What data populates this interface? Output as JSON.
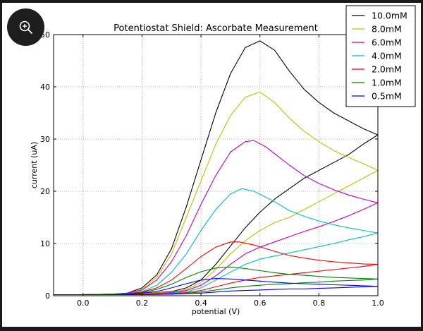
{
  "zoom_button": {
    "icon": "zoom-in-icon"
  },
  "chart_data": {
    "type": "line",
    "title": "Potentiostat Shield: Ascorbate Measurement",
    "xlabel": "potential (V)",
    "ylabel": "current (uA)",
    "xlim": [
      -0.1,
      1.0
    ],
    "ylim": [
      0,
      50
    ],
    "xticks": [
      0.0,
      0.2,
      0.4,
      0.6,
      0.8,
      1.0
    ],
    "xtick_labels": [
      "0.0",
      "0.2",
      "0.4",
      "0.6",
      "0.8",
      "1.0"
    ],
    "yticks": [
      0,
      10,
      20,
      30,
      40,
      50
    ],
    "ytick_labels": [
      "0",
      "10",
      "20",
      "30",
      "40",
      "50"
    ],
    "grid": true,
    "legend_position": "top-right",
    "series": [
      {
        "name": "10.0mM",
        "color": "#000000",
        "forward": [
          [
            -0.1,
            0.2
          ],
          [
            0.0,
            0.2
          ],
          [
            0.1,
            0.3
          ],
          [
            0.15,
            0.5
          ],
          [
            0.2,
            1.5
          ],
          [
            0.25,
            4
          ],
          [
            0.3,
            9
          ],
          [
            0.35,
            17
          ],
          [
            0.4,
            26
          ],
          [
            0.45,
            35
          ],
          [
            0.5,
            42.5
          ],
          [
            0.55,
            47.5
          ],
          [
            0.6,
            48.8
          ],
          [
            0.65,
            47
          ],
          [
            0.7,
            43
          ],
          [
            0.75,
            39.5
          ],
          [
            0.8,
            37
          ],
          [
            0.85,
            35
          ],
          [
            0.9,
            33.5
          ],
          [
            0.95,
            32
          ],
          [
            1.0,
            30.8
          ]
        ],
        "reverse": [
          [
            1.0,
            30.8
          ],
          [
            0.95,
            29
          ],
          [
            0.9,
            27
          ],
          [
            0.85,
            25.5
          ],
          [
            0.8,
            24
          ],
          [
            0.75,
            22.5
          ],
          [
            0.7,
            20.5
          ],
          [
            0.65,
            18.5
          ],
          [
            0.6,
            16
          ],
          [
            0.55,
            13
          ],
          [
            0.5,
            9.5
          ],
          [
            0.45,
            6
          ],
          [
            0.4,
            3
          ],
          [
            0.35,
            1.5
          ],
          [
            0.3,
            0.8
          ],
          [
            0.2,
            0.4
          ],
          [
            0.1,
            0.2
          ],
          [
            -0.1,
            0.2
          ]
        ]
      },
      {
        "name": "8.0mM",
        "color": "#bfbf00",
        "forward": [
          [
            -0.1,
            0.2
          ],
          [
            0.0,
            0.2
          ],
          [
            0.1,
            0.3
          ],
          [
            0.15,
            0.5
          ],
          [
            0.2,
            1.2
          ],
          [
            0.25,
            3.5
          ],
          [
            0.3,
            8
          ],
          [
            0.35,
            15
          ],
          [
            0.4,
            22
          ],
          [
            0.45,
            29
          ],
          [
            0.5,
            34.5
          ],
          [
            0.55,
            38
          ],
          [
            0.6,
            39
          ],
          [
            0.65,
            37
          ],
          [
            0.7,
            34
          ],
          [
            0.75,
            31.5
          ],
          [
            0.8,
            29.5
          ],
          [
            0.85,
            27.8
          ],
          [
            0.9,
            26.5
          ],
          [
            0.95,
            25.3
          ],
          [
            1.0,
            24
          ]
        ],
        "reverse": [
          [
            1.0,
            24
          ],
          [
            0.95,
            22.5
          ],
          [
            0.9,
            21
          ],
          [
            0.85,
            19.5
          ],
          [
            0.8,
            18
          ],
          [
            0.75,
            16.5
          ],
          [
            0.7,
            15
          ],
          [
            0.65,
            14
          ],
          [
            0.6,
            12.5
          ],
          [
            0.55,
            10.5
          ],
          [
            0.5,
            8
          ],
          [
            0.45,
            5
          ],
          [
            0.4,
            2.5
          ],
          [
            0.35,
            1.2
          ],
          [
            0.3,
            0.7
          ],
          [
            0.2,
            0.4
          ],
          [
            0.1,
            0.2
          ],
          [
            -0.1,
            0.2
          ]
        ]
      },
      {
        "name": "6.0mM",
        "color": "#bf00bf",
        "forward": [
          [
            -0.1,
            0.2
          ],
          [
            0.0,
            0.2
          ],
          [
            0.1,
            0.3
          ],
          [
            0.15,
            0.5
          ],
          [
            0.2,
            1.1
          ],
          [
            0.25,
            3
          ],
          [
            0.3,
            6.5
          ],
          [
            0.35,
            11.5
          ],
          [
            0.4,
            17.5
          ],
          [
            0.45,
            23
          ],
          [
            0.5,
            27.5
          ],
          [
            0.55,
            29.5
          ],
          [
            0.58,
            29.7
          ],
          [
            0.62,
            28.5
          ],
          [
            0.7,
            25
          ],
          [
            0.75,
            23
          ],
          [
            0.8,
            21.5
          ],
          [
            0.85,
            20.3
          ],
          [
            0.9,
            19.3
          ],
          [
            0.95,
            18.5
          ],
          [
            1.0,
            17.8
          ]
        ],
        "reverse": [
          [
            1.0,
            17.8
          ],
          [
            0.95,
            16.5
          ],
          [
            0.9,
            15.3
          ],
          [
            0.85,
            14.2
          ],
          [
            0.8,
            13.2
          ],
          [
            0.75,
            12.3
          ],
          [
            0.7,
            11.3
          ],
          [
            0.65,
            10.3
          ],
          [
            0.6,
            9.3
          ],
          [
            0.55,
            8
          ],
          [
            0.5,
            6
          ],
          [
            0.45,
            3.8
          ],
          [
            0.4,
            2
          ],
          [
            0.35,
            1
          ],
          [
            0.3,
            0.6
          ],
          [
            0.2,
            0.3
          ],
          [
            0.1,
            0.2
          ],
          [
            -0.1,
            0.2
          ]
        ]
      },
      {
        "name": "4.0mM",
        "color": "#00bfbf",
        "forward": [
          [
            -0.1,
            0.2
          ],
          [
            0.0,
            0.2
          ],
          [
            0.1,
            0.3
          ],
          [
            0.15,
            0.4
          ],
          [
            0.2,
            0.8
          ],
          [
            0.25,
            2
          ],
          [
            0.3,
            4.5
          ],
          [
            0.35,
            8
          ],
          [
            0.4,
            12.5
          ],
          [
            0.45,
            16.5
          ],
          [
            0.5,
            19.5
          ],
          [
            0.54,
            20.5
          ],
          [
            0.58,
            20
          ],
          [
            0.65,
            18
          ],
          [
            0.7,
            16.3
          ],
          [
            0.75,
            15.2
          ],
          [
            0.8,
            14.3
          ],
          [
            0.85,
            13.6
          ],
          [
            0.9,
            13
          ],
          [
            0.95,
            12.5
          ],
          [
            1.0,
            12
          ]
        ],
        "reverse": [
          [
            1.0,
            12
          ],
          [
            0.95,
            11.3
          ],
          [
            0.9,
            10.7
          ],
          [
            0.85,
            10
          ],
          [
            0.8,
            9.4
          ],
          [
            0.75,
            8.8
          ],
          [
            0.7,
            8.2
          ],
          [
            0.65,
            7.6
          ],
          [
            0.6,
            7
          ],
          [
            0.55,
            6
          ],
          [
            0.5,
            4.5
          ],
          [
            0.45,
            3
          ],
          [
            0.4,
            1.5
          ],
          [
            0.35,
            0.8
          ],
          [
            0.3,
            0.5
          ],
          [
            0.2,
            0.3
          ],
          [
            0.1,
            0.2
          ],
          [
            -0.1,
            0.2
          ]
        ]
      },
      {
        "name": "2.0mM",
        "color": "#ff0000",
        "forward": [
          [
            -0.1,
            0.2
          ],
          [
            0.0,
            0.2
          ],
          [
            0.1,
            0.3
          ],
          [
            0.15,
            0.4
          ],
          [
            0.2,
            0.7
          ],
          [
            0.25,
            1.5
          ],
          [
            0.3,
            3
          ],
          [
            0.35,
            5.2
          ],
          [
            0.4,
            7.5
          ],
          [
            0.45,
            9.3
          ],
          [
            0.5,
            10.3
          ],
          [
            0.53,
            10.3
          ],
          [
            0.58,
            9.7
          ],
          [
            0.65,
            8.5
          ],
          [
            0.7,
            7.7
          ],
          [
            0.75,
            7.2
          ],
          [
            0.8,
            6.8
          ],
          [
            0.85,
            6.5
          ],
          [
            0.9,
            6.3
          ],
          [
            0.95,
            6.1
          ],
          [
            1.0,
            6
          ]
        ],
        "reverse": [
          [
            1.0,
            6
          ],
          [
            0.95,
            5.6
          ],
          [
            0.9,
            5.3
          ],
          [
            0.85,
            5
          ],
          [
            0.8,
            4.7
          ],
          [
            0.75,
            4.4
          ],
          [
            0.7,
            4.1
          ],
          [
            0.65,
            3.8
          ],
          [
            0.6,
            3.5
          ],
          [
            0.55,
            3
          ],
          [
            0.5,
            2.4
          ],
          [
            0.45,
            1.7
          ],
          [
            0.4,
            1
          ],
          [
            0.35,
            0.6
          ],
          [
            0.3,
            0.4
          ],
          [
            0.2,
            0.3
          ],
          [
            0.1,
            0.2
          ],
          [
            -0.1,
            0.2
          ]
        ]
      },
      {
        "name": "1.0mM",
        "color": "#008000",
        "forward": [
          [
            -0.1,
            0.2
          ],
          [
            0.0,
            0.2
          ],
          [
            0.1,
            0.3
          ],
          [
            0.15,
            0.4
          ],
          [
            0.2,
            0.6
          ],
          [
            0.25,
            1.2
          ],
          [
            0.3,
            2.2
          ],
          [
            0.35,
            3.5
          ],
          [
            0.4,
            4.6
          ],
          [
            0.45,
            5.3
          ],
          [
            0.5,
            5.5
          ],
          [
            0.55,
            5.2
          ],
          [
            0.6,
            4.8
          ],
          [
            0.65,
            4.4
          ],
          [
            0.7,
            4.1
          ],
          [
            0.75,
            3.9
          ],
          [
            0.8,
            3.7
          ],
          [
            0.85,
            3.5
          ],
          [
            0.9,
            3.4
          ],
          [
            0.95,
            3.3
          ],
          [
            1.0,
            3.2
          ]
        ],
        "reverse": [
          [
            1.0,
            3.2
          ],
          [
            0.95,
            3
          ],
          [
            0.9,
            2.9
          ],
          [
            0.85,
            2.8
          ],
          [
            0.8,
            2.6
          ],
          [
            0.75,
            2.5
          ],
          [
            0.7,
            2.3
          ],
          [
            0.65,
            2.2
          ],
          [
            0.6,
            2
          ],
          [
            0.55,
            1.8
          ],
          [
            0.5,
            1.5
          ],
          [
            0.45,
            1.1
          ],
          [
            0.4,
            0.7
          ],
          [
            0.35,
            0.5
          ],
          [
            0.3,
            0.3
          ],
          [
            0.2,
            0.2
          ],
          [
            0.1,
            0.2
          ],
          [
            -0.1,
            0.2
          ]
        ]
      },
      {
        "name": "0.5mM",
        "color": "#0000ff",
        "forward": [
          [
            -0.1,
            0.2
          ],
          [
            0.0,
            0.2
          ],
          [
            0.1,
            0.2
          ],
          [
            0.15,
            0.3
          ],
          [
            0.2,
            0.5
          ],
          [
            0.25,
            0.8
          ],
          [
            0.3,
            1.5
          ],
          [
            0.35,
            2.3
          ],
          [
            0.4,
            3
          ],
          [
            0.45,
            3.3
          ],
          [
            0.5,
            3.2
          ],
          [
            0.55,
            3
          ],
          [
            0.6,
            2.8
          ],
          [
            0.65,
            2.6
          ],
          [
            0.7,
            2.4
          ],
          [
            0.75,
            2.3
          ],
          [
            0.8,
            2.2
          ],
          [
            0.85,
            2.1
          ],
          [
            0.9,
            2
          ],
          [
            0.95,
            1.9
          ],
          [
            1.0,
            1.8
          ]
        ],
        "reverse": [
          [
            1.0,
            1.8
          ],
          [
            0.95,
            1.7
          ],
          [
            0.9,
            1.6
          ],
          [
            0.85,
            1.5
          ],
          [
            0.8,
            1.4
          ],
          [
            0.75,
            1.3
          ],
          [
            0.7,
            1.3
          ],
          [
            0.65,
            1.2
          ],
          [
            0.6,
            1.1
          ],
          [
            0.55,
            1
          ],
          [
            0.5,
            0.9
          ],
          [
            0.45,
            0.7
          ],
          [
            0.4,
            0.5
          ],
          [
            0.35,
            0.4
          ],
          [
            0.3,
            0.3
          ],
          [
            0.2,
            0.2
          ],
          [
            0.1,
            0.2
          ],
          [
            -0.1,
            0.2
          ]
        ]
      }
    ]
  }
}
